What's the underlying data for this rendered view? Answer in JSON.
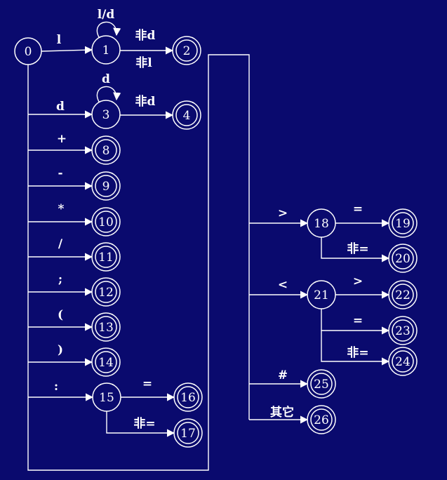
{
  "colors": {
    "background": "#0a0a6e",
    "foreground": "#ffffff"
  },
  "states": [
    {
      "id": "0",
      "accepting": false
    },
    {
      "id": "1",
      "accepting": false
    },
    {
      "id": "2",
      "accepting": true
    },
    {
      "id": "3",
      "accepting": false
    },
    {
      "id": "4",
      "accepting": true
    },
    {
      "id": "8",
      "accepting": true
    },
    {
      "id": "9",
      "accepting": true
    },
    {
      "id": "10",
      "accepting": true
    },
    {
      "id": "11",
      "accepting": true
    },
    {
      "id": "12",
      "accepting": true
    },
    {
      "id": "13",
      "accepting": true
    },
    {
      "id": "14",
      "accepting": true
    },
    {
      "id": "15",
      "accepting": false
    },
    {
      "id": "16",
      "accepting": true
    },
    {
      "id": "17",
      "accepting": true
    },
    {
      "id": "18",
      "accepting": false
    },
    {
      "id": "19",
      "accepting": true
    },
    {
      "id": "20",
      "accepting": true
    },
    {
      "id": "21",
      "accepting": false
    },
    {
      "id": "22",
      "accepting": true
    },
    {
      "id": "23",
      "accepting": true
    },
    {
      "id": "24",
      "accepting": true
    },
    {
      "id": "25",
      "accepting": true
    },
    {
      "id": "26",
      "accepting": true
    }
  ],
  "transitions": [
    {
      "from": "0",
      "to": "1",
      "label": "l"
    },
    {
      "from": "1",
      "to": "1",
      "label": "l/d"
    },
    {
      "from": "1",
      "to": "2",
      "label": "非d"
    },
    {
      "from": "1",
      "to": "2",
      "label2": "非l"
    },
    {
      "from": "0",
      "to": "3",
      "label": "d"
    },
    {
      "from": "3",
      "to": "3",
      "label": "d"
    },
    {
      "from": "3",
      "to": "4",
      "label": "非d"
    },
    {
      "from": "0",
      "to": "8",
      "label": "+"
    },
    {
      "from": "0",
      "to": "9",
      "label": "-"
    },
    {
      "from": "0",
      "to": "10",
      "label": "*"
    },
    {
      "from": "0",
      "to": "11",
      "label": "/"
    },
    {
      "from": "0",
      "to": "12",
      "label": ";"
    },
    {
      "from": "0",
      "to": "13",
      "label": "("
    },
    {
      "from": "0",
      "to": "14",
      "label": ")"
    },
    {
      "from": "0",
      "to": "15",
      "label": ":"
    },
    {
      "from": "15",
      "to": "16",
      "label": "="
    },
    {
      "from": "15",
      "to": "17",
      "label": "非="
    },
    {
      "from": "0",
      "to": "18",
      "label": ">"
    },
    {
      "from": "18",
      "to": "19",
      "label": "="
    },
    {
      "from": "18",
      "to": "20",
      "label": "非="
    },
    {
      "from": "0",
      "to": "21",
      "label": "<"
    },
    {
      "from": "21",
      "to": "22",
      "label": ">"
    },
    {
      "from": "21",
      "to": "23",
      "label": "="
    },
    {
      "from": "21",
      "to": "24",
      "label": "非="
    },
    {
      "from": "0",
      "to": "25",
      "label": "#"
    },
    {
      "from": "0",
      "to": "26",
      "label": "其它"
    }
  ]
}
